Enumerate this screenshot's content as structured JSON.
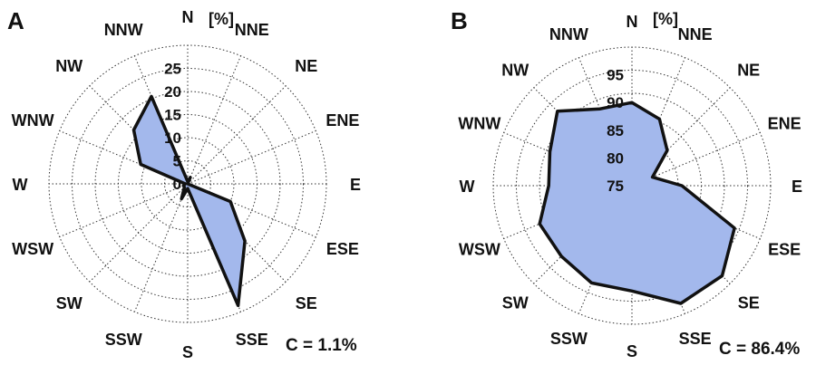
{
  "colors": {
    "fill": "#a3b8ec",
    "outline": "#111111",
    "grid": "#333333"
  },
  "chart_data": [
    {
      "type": "radar",
      "panel_label": "A",
      "unit": "[%]",
      "directions": [
        "N",
        "NNE",
        "NE",
        "ENE",
        "E",
        "ESE",
        "SE",
        "SSE",
        "S",
        "SSW",
        "SW",
        "WSW",
        "W",
        "WNW",
        "NW",
        "NNW"
      ],
      "values": [
        0.5,
        1.5,
        0,
        0,
        0,
        10,
        17.5,
        28.5,
        1,
        3.5,
        1,
        1,
        0.5,
        11,
        16.5,
        20.5
      ],
      "r_ticks": [
        "0",
        "5",
        "10",
        "15",
        "20",
        "25"
      ],
      "r_min": 0,
      "r_max": 30,
      "calm": "C = 1.1%",
      "grid": true
    },
    {
      "type": "radar",
      "panel_label": "B",
      "unit": "[%]",
      "directions": [
        "N",
        "NNE",
        "NE",
        "ENE",
        "E",
        "ESE",
        "SE",
        "SSE",
        "S",
        "SSW",
        "SW",
        "WSW",
        "W",
        "WNW",
        "NW",
        "NNW"
      ],
      "values": [
        90,
        88,
        84,
        79,
        84,
        95,
        98,
        98,
        94,
        94,
        93,
        93,
        90,
        91,
        94,
        90
      ],
      "r_ticks": [
        "75",
        "80",
        "85",
        "90",
        "95"
      ],
      "r_min": 75,
      "r_max": 100,
      "calm": "C = 86.4%",
      "grid": true
    }
  ]
}
